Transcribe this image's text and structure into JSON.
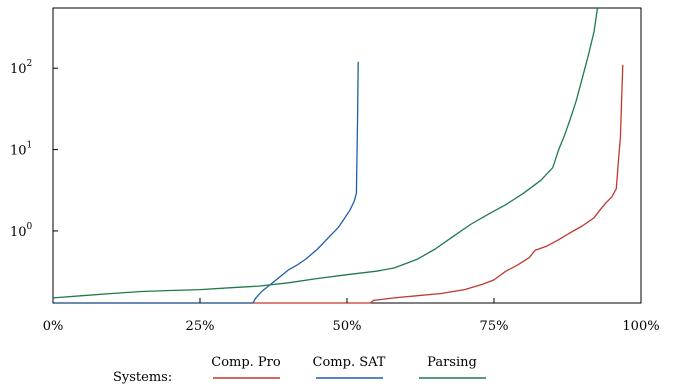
{
  "chart_data": {
    "type": "line",
    "title": "",
    "xlabel": "",
    "ylabel": "",
    "x_scale": "linear",
    "y_scale": "log",
    "xlim": [
      0,
      100
    ],
    "ylim": [
      0.13,
      550
    ],
    "x_ticks": [
      {
        "value": 0,
        "label": "0%"
      },
      {
        "value": 25,
        "label": "25%"
      },
      {
        "value": 50,
        "label": "50%"
      },
      {
        "value": 75,
        "label": "75%"
      },
      {
        "value": 100,
        "label": "100%"
      }
    ],
    "y_ticks": [
      {
        "value": 1,
        "base": "10",
        "exp": "0"
      },
      {
        "value": 10,
        "base": "10",
        "exp": "1"
      },
      {
        "value": 100,
        "base": "10",
        "exp": "2"
      }
    ],
    "grid": false,
    "legend": {
      "title": "Systems:",
      "placement": "bottom-center",
      "entries": [
        "Comp. Pro",
        "Comp. SAT",
        "Parsing"
      ]
    },
    "series": [
      {
        "name": "Comp. Pro",
        "color": "#c0392b",
        "points": [
          [
            0,
            0.13
          ],
          [
            54,
            0.13
          ],
          [
            54.5,
            0.14
          ],
          [
            58,
            0.15
          ],
          [
            62,
            0.16
          ],
          [
            66,
            0.17
          ],
          [
            70,
            0.19
          ],
          [
            73,
            0.22
          ],
          [
            75,
            0.25
          ],
          [
            77,
            0.32
          ],
          [
            79,
            0.38
          ],
          [
            81,
            0.47
          ],
          [
            82,
            0.58
          ],
          [
            84,
            0.65
          ],
          [
            86,
            0.78
          ],
          [
            88,
            0.95
          ],
          [
            90,
            1.15
          ],
          [
            92,
            1.45
          ],
          [
            93,
            1.8
          ],
          [
            94,
            2.2
          ],
          [
            95,
            2.6
          ],
          [
            95.8,
            3.3
          ],
          [
            96.2,
            8
          ],
          [
            96.5,
            14
          ],
          [
            96.7,
            40
          ],
          [
            96.9,
            110
          ]
        ]
      },
      {
        "name": "Comp. SAT",
        "color": "#1f5fa8",
        "points": [
          [
            0,
            0.13
          ],
          [
            34,
            0.13
          ],
          [
            34.5,
            0.15
          ],
          [
            35.5,
            0.18
          ],
          [
            37,
            0.22
          ],
          [
            38.5,
            0.27
          ],
          [
            40,
            0.33
          ],
          [
            41.5,
            0.38
          ],
          [
            43,
            0.45
          ],
          [
            45,
            0.6
          ],
          [
            47,
            0.85
          ],
          [
            48.5,
            1.1
          ],
          [
            49.5,
            1.4
          ],
          [
            50.5,
            1.8
          ],
          [
            51.2,
            2.3
          ],
          [
            51.6,
            2.9
          ],
          [
            51.8,
            25
          ],
          [
            51.9,
            120
          ]
        ]
      },
      {
        "name": "Parsing",
        "color": "#1f7a4d",
        "points": [
          [
            0,
            0.15
          ],
          [
            5,
            0.16
          ],
          [
            10,
            0.17
          ],
          [
            15,
            0.18
          ],
          [
            20,
            0.185
          ],
          [
            25,
            0.19
          ],
          [
            30,
            0.2
          ],
          [
            35,
            0.21
          ],
          [
            40,
            0.23
          ],
          [
            45,
            0.26
          ],
          [
            50,
            0.29
          ],
          [
            55,
            0.32
          ],
          [
            58,
            0.35
          ],
          [
            62,
            0.45
          ],
          [
            65,
            0.6
          ],
          [
            68,
            0.85
          ],
          [
            71,
            1.2
          ],
          [
            74,
            1.6
          ],
          [
            77,
            2.1
          ],
          [
            80,
            2.9
          ],
          [
            83,
            4.2
          ],
          [
            85,
            6
          ],
          [
            86,
            10
          ],
          [
            87,
            15
          ],
          [
            88,
            24
          ],
          [
            89,
            40
          ],
          [
            90,
            75
          ],
          [
            91,
            140
          ],
          [
            92,
            280
          ],
          [
            92.6,
            550
          ]
        ]
      }
    ]
  }
}
